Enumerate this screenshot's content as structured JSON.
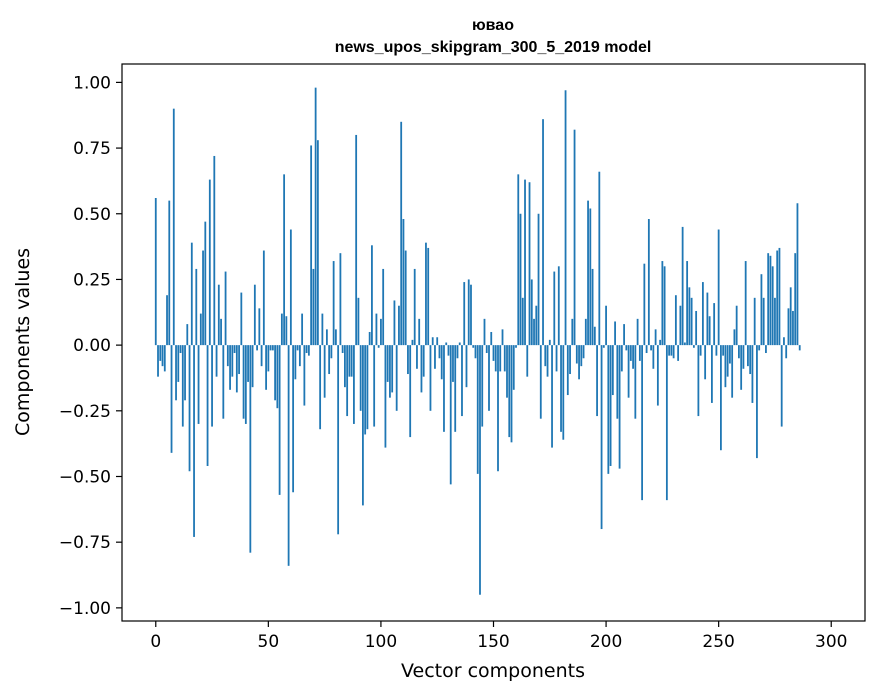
{
  "chart_data": {
    "type": "bar",
    "title": "ювао",
    "subtitle": "news_upos_skipgram_300_5_2019 model",
    "xlabel": "Vector components",
    "ylabel": "Components values",
    "xlim": [
      -15,
      315
    ],
    "ylim": [
      -1.05,
      1.07
    ],
    "xticks": [
      0,
      50,
      100,
      150,
      200,
      250,
      300
    ],
    "xtick_labels": [
      "0",
      "50",
      "100",
      "150",
      "200",
      "250",
      "300"
    ],
    "yticks": [
      -1.0,
      -0.75,
      -0.5,
      -0.25,
      0.0,
      0.25,
      0.5,
      0.75,
      1.0
    ],
    "ytick_labels": [
      "−1.00",
      "−0.75",
      "−0.50",
      "−0.25",
      "0.00",
      "0.25",
      "0.50",
      "0.75",
      "1.00"
    ],
    "bar_color": "#1f77b4",
    "values": [
      0.56,
      -0.12,
      -0.06,
      -0.08,
      -0.1,
      0.19,
      0.55,
      -0.41,
      0.9,
      -0.21,
      -0.14,
      -0.03,
      -0.31,
      -0.21,
      0.08,
      -0.48,
      0.39,
      -0.73,
      0.29,
      -0.3,
      0.12,
      0.36,
      0.47,
      -0.46,
      0.63,
      -0.31,
      0.72,
      -0.12,
      0.23,
      0.1,
      -0.28,
      0.28,
      -0.08,
      -0.17,
      -0.12,
      -0.03,
      -0.18,
      -0.11,
      0.2,
      -0.28,
      -0.3,
      -0.14,
      -0.79,
      -0.16,
      0.23,
      -0.02,
      0.14,
      -0.08,
      0.36,
      -0.17,
      -0.1,
      -0.02,
      -0.02,
      -0.21,
      -0.24,
      -0.57,
      0.12,
      0.65,
      0.11,
      -0.84,
      0.44,
      -0.56,
      -0.13,
      -0.02,
      -0.08,
      0.12,
      -0.23,
      -0.03,
      -0.04,
      0.76,
      0.29,
      0.98,
      0.78,
      -0.32,
      0.12,
      -0.2,
      0.06,
      -0.11,
      -0.05,
      0.32,
      0.06,
      -0.72,
      0.35,
      -0.03,
      -0.16,
      -0.27,
      -0.12,
      -0.12,
      -0.3,
      0.8,
      0.18,
      -0.25,
      -0.61,
      -0.34,
      -0.32,
      0.05,
      0.38,
      -0.31,
      0.12,
      -0.01,
      0.1,
      0.29,
      -0.39,
      -0.14,
      -0.2,
      -0.18,
      0.17,
      -0.25,
      0.15,
      0.85,
      0.48,
      0.36,
      -0.11,
      -0.35,
      0.02,
      0.29,
      -0.09,
      0.1,
      -0.18,
      -0.12,
      0.39,
      0.37,
      -0.25,
      0.03,
      -0.09,
      0.03,
      -0.05,
      -0.13,
      -0.33,
      0.01,
      -0.04,
      -0.53,
      -0.14,
      -0.33,
      -0.05,
      0.01,
      -0.27,
      0.24,
      -0.16,
      0.25,
      0.23,
      -0.01,
      -0.05,
      -0.49,
      -0.95,
      -0.31,
      0.1,
      -0.03,
      -0.25,
      0.05,
      -0.06,
      -0.1,
      -0.48,
      -0.1,
      0.06,
      -0.1,
      -0.2,
      -0.35,
      -0.37,
      -0.17,
      -0.01,
      0.65,
      0.5,
      0.18,
      0.63,
      -0.12,
      0.62,
      0.25,
      0.1,
      0.15,
      0.5,
      -0.28,
      0.86,
      -0.08,
      -0.12,
      0.02,
      -0.39,
      0.28,
      -0.1,
      0.3,
      -0.33,
      -0.36,
      0.97,
      -0.19,
      -0.11,
      0.1,
      0.82,
      -0.07,
      -0.13,
      -0.08,
      -0.05,
      0.1,
      0.55,
      0.52,
      0.29,
      0.07,
      -0.27,
      0.66,
      -0.7,
      -0.01,
      0.15,
      -0.49,
      -0.46,
      -0.19,
      0.09,
      -0.28,
      -0.47,
      -0.1,
      0.08,
      -0.02,
      -0.2,
      -0.06,
      -0.09,
      -0.28,
      0.1,
      -0.06,
      -0.59,
      0.31,
      -0.03,
      0.48,
      -0.02,
      -0.09,
      0.06,
      -0.23,
      0.02,
      0.32,
      0.3,
      -0.59,
      -0.04,
      -0.04,
      -0.05,
      0.19,
      -0.06,
      0.15,
      0.45,
      0.01,
      0.32,
      0.22,
      0.18,
      -0.01,
      0.13,
      -0.27,
      -0.04,
      0.24,
      -0.13,
      0.2,
      0.11,
      -0.22,
      0.16,
      -0.04,
      0.44,
      -0.4,
      -0.04,
      -0.16,
      -0.12,
      -0.07,
      -0.2,
      0.06,
      0.15,
      -0.05,
      -0.17,
      -0.09,
      0.32,
      -0.08,
      -0.11,
      -0.22,
      0.18,
      -0.43,
      -0.02,
      0.27,
      0.18,
      -0.03,
      0.35,
      0.34,
      0.3,
      0.18,
      0.36,
      0.37,
      -0.31,
      0.03,
      -0.05,
      0.14,
      0.22,
      0.13,
      0.35,
      0.54,
      -0.02
    ]
  }
}
